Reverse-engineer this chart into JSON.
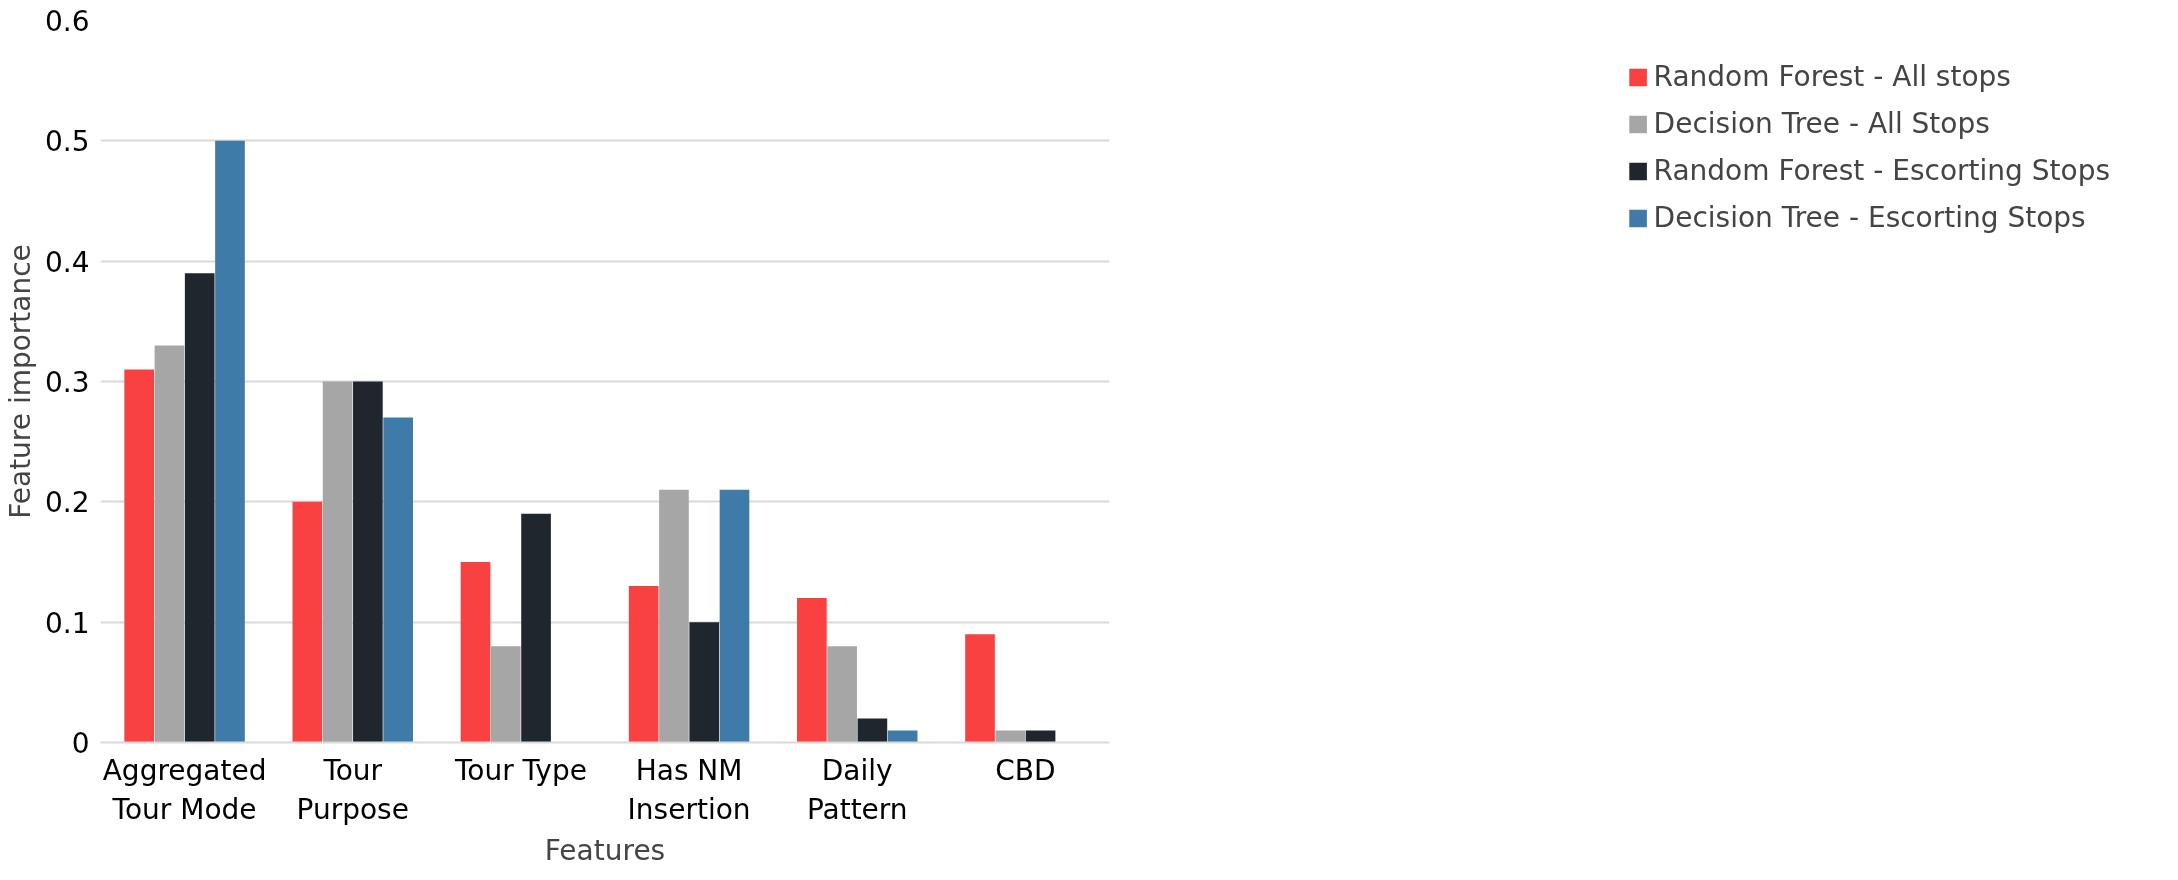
{
  "chart_data": {
    "type": "bar",
    "xlabel": "Features",
    "ylabel": "Feature importance",
    "categories": [
      "Aggregated\nTour Mode",
      "Tour\nPurpose",
      "Tour Type",
      "Has NM\nInsertion",
      "Daily\nPattern",
      "CBD"
    ],
    "series": [
      {
        "name": "Random Forest - All stops",
        "color": "#f94141",
        "values": [
          0.31,
          0.2,
          0.15,
          0.13,
          0.12,
          0.09
        ]
      },
      {
        "name": "Decision Tree - All Stops",
        "color": "#a6a6a6",
        "values": [
          0.33,
          0.3,
          0.08,
          0.21,
          0.08,
          0.01
        ]
      },
      {
        "name": "Random Forest - Escorting Stops",
        "color": "#1f262d",
        "values": [
          0.39,
          0.3,
          0.19,
          0.1,
          0.02,
          0.01
        ]
      },
      {
        "name": "Decision Tree - Escorting Stops",
        "color": "#3f7ba8",
        "values": [
          0.5,
          0.27,
          0,
          0.21,
          0.01,
          0
        ]
      }
    ],
    "ylim": [
      0,
      0.6
    ],
    "yticks": [
      0,
      0.1,
      0.2,
      0.3,
      0.4,
      0.5,
      0.6
    ],
    "grid": "y",
    "legend": "right"
  }
}
